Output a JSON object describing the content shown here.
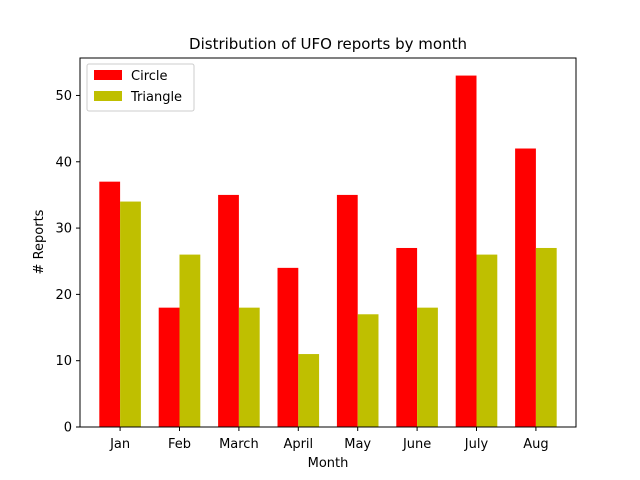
{
  "chart_data": {
    "type": "bar",
    "title": "Distribution of UFO reports by month",
    "xlabel": "Month",
    "ylabel": "# Reports",
    "categories": [
      "Jan",
      "Feb",
      "March",
      "April",
      "May",
      "June",
      "July",
      "Aug"
    ],
    "series": [
      {
        "name": "Circle",
        "color": "#ff0000",
        "values": [
          37,
          18,
          35,
          24,
          35,
          27,
          53,
          42
        ]
      },
      {
        "name": "Triangle",
        "color": "#bfbf00",
        "values": [
          34,
          26,
          18,
          11,
          17,
          18,
          26,
          27
        ]
      }
    ],
    "ylim": [
      0,
      55.65
    ],
    "yticks": [
      0,
      10,
      20,
      30,
      40,
      50
    ],
    "grid": false,
    "legend_position": "top-left"
  }
}
